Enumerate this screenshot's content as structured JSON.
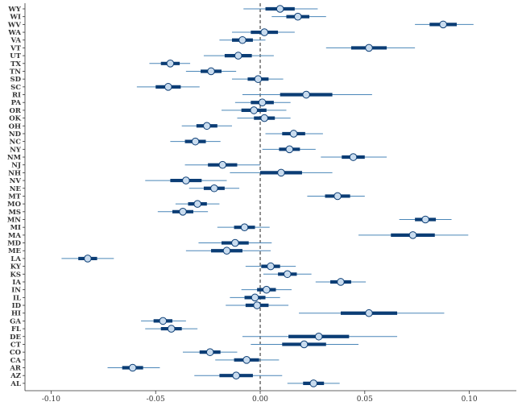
{
  "chart_data": {
    "type": "scatter",
    "variant": "coefficient forest plot with interval bars",
    "title": "",
    "xlabel": "",
    "ylabel": "",
    "xlim": [
      -0.1125,
      0.1225
    ],
    "x_ticks": [
      {
        "value": -0.1,
        "label": "-0.10"
      },
      {
        "value": -0.05,
        "label": "-0.05"
      },
      {
        "value": 0.0,
        "label": "0.00"
      },
      {
        "value": 0.05,
        "label": "0.05"
      },
      {
        "value": 0.1,
        "label": "0.10"
      }
    ],
    "reference_line": {
      "x": 0,
      "style": "dashed"
    },
    "grid": false,
    "legend": "none",
    "colors": {
      "outer_interval": "#4a86b8",
      "inner_interval": "#0b3d75",
      "point_fill": "#c9dcef",
      "point_stroke": "#0b3d75",
      "axis": "#333333",
      "reference_line": "#222222"
    },
    "states": [
      {
        "label": "WY",
        "estimate": 0.0095,
        "inner": [
          0.0025,
          0.0165
        ],
        "outer": [
          -0.008,
          0.0275
        ]
      },
      {
        "label": "WI",
        "estimate": 0.018,
        "inner": [
          0.0125,
          0.0235
        ],
        "outer": [
          0.0055,
          0.0315
        ]
      },
      {
        "label": "WV",
        "estimate": 0.0875,
        "inner": [
          0.081,
          0.094
        ],
        "outer": [
          0.074,
          0.102
        ]
      },
      {
        "label": "WA",
        "estimate": 0.002,
        "inner": [
          -0.0045,
          0.0085
        ],
        "outer": [
          -0.0135,
          0.0165
        ]
      },
      {
        "label": "VA",
        "estimate": -0.0085,
        "inner": [
          -0.0135,
          -0.0035
        ],
        "outer": [
          -0.0195,
          0.0025
        ]
      },
      {
        "label": "VT",
        "estimate": 0.052,
        "inner": [
          0.0435,
          0.0605
        ],
        "outer": [
          0.0315,
          0.074
        ]
      },
      {
        "label": "UT",
        "estimate": -0.0105,
        "inner": [
          -0.017,
          -0.004
        ],
        "outer": [
          -0.027,
          0.0065
        ]
      },
      {
        "label": "TX",
        "estimate": -0.043,
        "inner": [
          -0.0475,
          -0.0385
        ],
        "outer": [
          -0.053,
          -0.0335
        ]
      },
      {
        "label": "TN",
        "estimate": -0.0235,
        "inner": [
          -0.0285,
          -0.0185
        ],
        "outer": [
          -0.0355,
          -0.0115
        ]
      },
      {
        "label": "SD",
        "estimate": -0.001,
        "inner": [
          -0.006,
          0.004
        ],
        "outer": [
          -0.0135,
          0.011
        ]
      },
      {
        "label": "SC",
        "estimate": -0.044,
        "inner": [
          -0.05,
          -0.038
        ],
        "outer": [
          -0.059,
          -0.029
        ]
      },
      {
        "label": "RI",
        "estimate": 0.022,
        "inner": [
          0.0095,
          0.0345
        ],
        "outer": [
          -0.0085,
          0.0535
        ]
      },
      {
        "label": "PA",
        "estimate": 0.001,
        "inner": [
          -0.0045,
          0.0065
        ],
        "outer": [
          -0.012,
          0.0145
        ]
      },
      {
        "label": "OR",
        "estimate": -0.003,
        "inner": [
          -0.009,
          0.003
        ],
        "outer": [
          -0.0185,
          0.0125
        ]
      },
      {
        "label": "OK",
        "estimate": 0.002,
        "inner": [
          -0.003,
          0.007
        ],
        "outer": [
          -0.011,
          0.0145
        ]
      },
      {
        "label": "OH",
        "estimate": -0.0255,
        "inner": [
          -0.0305,
          -0.0205
        ],
        "outer": [
          -0.0375,
          -0.0135
        ]
      },
      {
        "label": "ND",
        "estimate": 0.016,
        "inner": [
          0.0105,
          0.0215
        ],
        "outer": [
          0.0025,
          0.03
        ]
      },
      {
        "label": "NC",
        "estimate": -0.031,
        "inner": [
          -0.036,
          -0.026
        ],
        "outer": [
          -0.043,
          -0.019
        ]
      },
      {
        "label": "NY",
        "estimate": 0.014,
        "inner": [
          0.009,
          0.019
        ],
        "outer": [
          0.001,
          0.0265
        ]
      },
      {
        "label": "NM",
        "estimate": 0.0445,
        "inner": [
          0.039,
          0.05
        ],
        "outer": [
          0.029,
          0.0605
        ]
      },
      {
        "label": "NJ",
        "estimate": -0.018,
        "inner": [
          -0.025,
          -0.011
        ],
        "outer": [
          -0.036,
          0.0
        ]
      },
      {
        "label": "NH",
        "estimate": 0.01,
        "inner": [
          0.0,
          0.02
        ],
        "outer": [
          -0.0145,
          0.0345
        ]
      },
      {
        "label": "NV",
        "estimate": -0.0355,
        "inner": [
          -0.043,
          -0.028
        ],
        "outer": [
          -0.055,
          -0.016
        ]
      },
      {
        "label": "NE",
        "estimate": -0.022,
        "inner": [
          -0.027,
          -0.017
        ],
        "outer": [
          -0.034,
          -0.01
        ]
      },
      {
        "label": "MT",
        "estimate": 0.037,
        "inner": [
          0.031,
          0.043
        ],
        "outer": [
          0.0225,
          0.05
        ]
      },
      {
        "label": "MO",
        "estimate": -0.03,
        "inner": [
          -0.0345,
          -0.0255
        ],
        "outer": [
          -0.0405,
          -0.0195
        ]
      },
      {
        "label": "MS",
        "estimate": -0.037,
        "inner": [
          -0.042,
          -0.032
        ],
        "outer": [
          -0.049,
          -0.025
        ]
      },
      {
        "label": "MN",
        "estimate": 0.079,
        "inner": [
          0.074,
          0.084
        ],
        "outer": [
          0.0665,
          0.0915
        ]
      },
      {
        "label": "MI",
        "estimate": -0.0075,
        "inner": [
          -0.0125,
          -0.0025
        ],
        "outer": [
          -0.0205,
          0.0045
        ]
      },
      {
        "label": "MA",
        "estimate": 0.073,
        "inner": [
          0.0625,
          0.0835
        ],
        "outer": [
          0.047,
          0.0995
        ]
      },
      {
        "label": "MD",
        "estimate": -0.012,
        "inner": [
          -0.0185,
          -0.0055
        ],
        "outer": [
          -0.0295,
          0.0055
        ]
      },
      {
        "label": "ME",
        "estimate": -0.016,
        "inner": [
          -0.0235,
          -0.0085
        ],
        "outer": [
          -0.0355,
          0.005
        ]
      },
      {
        "label": "LA",
        "estimate": -0.0825,
        "inner": [
          -0.087,
          -0.078
        ],
        "outer": [
          -0.095,
          -0.07
        ]
      },
      {
        "label": "KY",
        "estimate": 0.005,
        "inner": [
          0.0005,
          0.0095
        ],
        "outer": [
          -0.007,
          0.017
        ]
      },
      {
        "label": "KS",
        "estimate": 0.013,
        "inner": [
          0.0085,
          0.0175
        ],
        "outer": [
          0.0015,
          0.0245
        ]
      },
      {
        "label": "IA",
        "estimate": 0.0385,
        "inner": [
          0.0335,
          0.0435
        ],
        "outer": [
          0.0265,
          0.0505
        ]
      },
      {
        "label": "IN",
        "estimate": 0.003,
        "inner": [
          -0.0015,
          0.0075
        ],
        "outer": [
          -0.009,
          0.015
        ]
      },
      {
        "label": "IL",
        "estimate": -0.0025,
        "inner": [
          -0.0075,
          0.0025
        ],
        "outer": [
          -0.0145,
          0.0095
        ]
      },
      {
        "label": "ID",
        "estimate": -0.0015,
        "inner": [
          -0.007,
          0.004
        ],
        "outer": [
          -0.0165,
          0.0135
        ]
      },
      {
        "label": "HI",
        "estimate": 0.052,
        "inner": [
          0.0385,
          0.0655
        ],
        "outer": [
          0.0185,
          0.088
        ]
      },
      {
        "label": "GA",
        "estimate": -0.0465,
        "inner": [
          -0.051,
          -0.042
        ],
        "outer": [
          -0.057,
          -0.0355
        ]
      },
      {
        "label": "FL",
        "estimate": -0.0425,
        "inner": [
          -0.0475,
          -0.0375
        ],
        "outer": [
          -0.055,
          -0.03
        ]
      },
      {
        "label": "DE",
        "estimate": 0.028,
        "inner": [
          0.0135,
          0.0425
        ],
        "outer": [
          -0.0085,
          0.0655
        ]
      },
      {
        "label": "CT",
        "estimate": 0.021,
        "inner": [
          0.0105,
          0.0315
        ],
        "outer": [
          -0.0045,
          0.047
        ]
      },
      {
        "label": "CO",
        "estimate": -0.024,
        "inner": [
          -0.029,
          -0.019
        ],
        "outer": [
          -0.037,
          -0.011
        ]
      },
      {
        "label": "CA",
        "estimate": -0.0065,
        "inner": [
          -0.0125,
          -0.0005
        ],
        "outer": [
          -0.0215,
          0.009
        ]
      },
      {
        "label": "AR",
        "estimate": -0.061,
        "inner": [
          -0.066,
          -0.056
        ],
        "outer": [
          -0.073,
          -0.048
        ]
      },
      {
        "label": "AZ",
        "estimate": -0.0115,
        "inner": [
          -0.0195,
          -0.0035
        ],
        "outer": [
          -0.0315,
          0.0105
        ]
      },
      {
        "label": "AL",
        "estimate": 0.0255,
        "inner": [
          0.0205,
          0.0305
        ],
        "outer": [
          0.013,
          0.038
        ]
      }
    ]
  }
}
